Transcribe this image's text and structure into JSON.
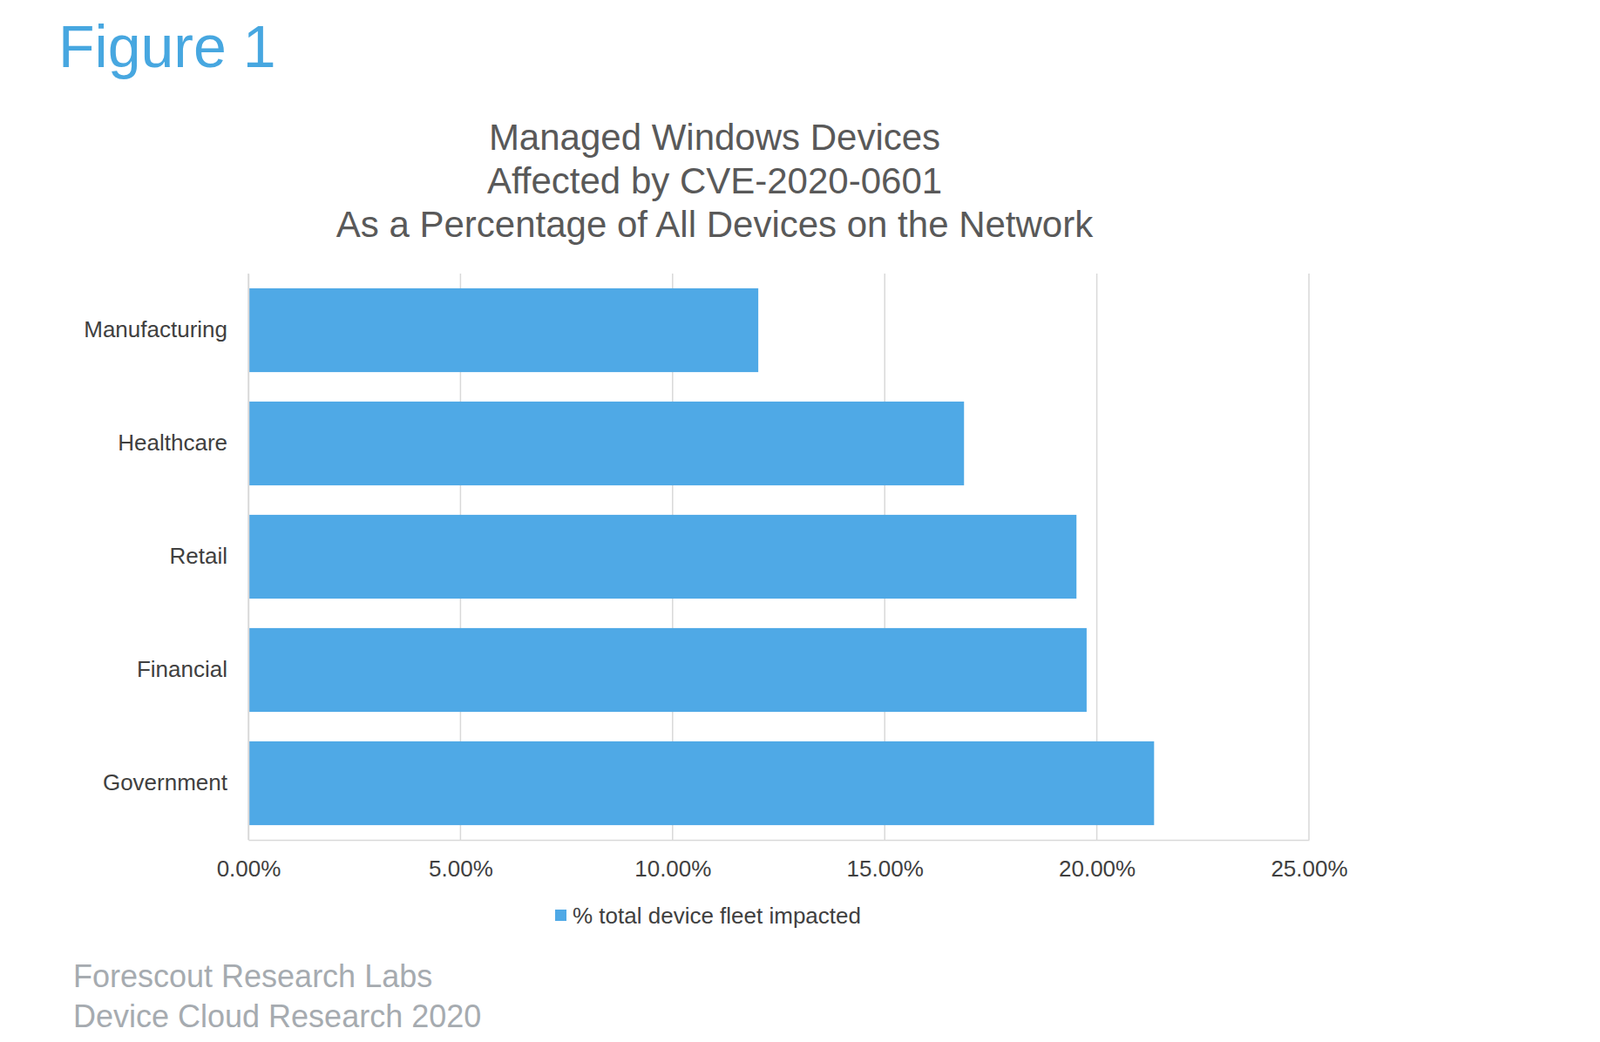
{
  "header": {
    "label": "Figure 1"
  },
  "chart_data": {
    "type": "bar",
    "orientation": "horizontal",
    "title": [
      "Managed Windows Devices",
      "Affected by CVE-2020-0601",
      "As a Percentage of All Devices on the Network"
    ],
    "categories": [
      "Manufacturing",
      "Healthcare",
      "Retail",
      "Financial",
      "Government"
    ],
    "series": [
      {
        "name": "% total device fleet impacted",
        "color": "#4fa9e6",
        "values": [
          12.02,
          16.87,
          19.52,
          19.76,
          21.35
        ]
      }
    ],
    "xlim": [
      0,
      25
    ],
    "xticks": [
      {
        "value": 0,
        "label": "0.00%"
      },
      {
        "value": 5,
        "label": "5.00%"
      },
      {
        "value": 10,
        "label": "10.00%"
      },
      {
        "value": 15,
        "label": "15.00%"
      },
      {
        "value": 20,
        "label": "20.00%"
      },
      {
        "value": 25,
        "label": "25.00%"
      }
    ],
    "grid": true,
    "legend": "bottom"
  },
  "footer": {
    "lines": [
      "Forescout Research Labs",
      "Device Cloud Research 2020"
    ]
  }
}
